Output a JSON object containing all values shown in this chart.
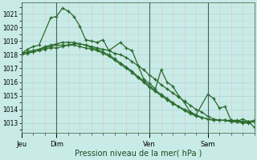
{
  "background_color": "#c8ebe8",
  "grid_color": "#b0d8d4",
  "minor_grid_color": "#e0c8c8",
  "line_color": "#2a6b2a",
  "marker_color": "#2a6b2a",
  "ylabel_ticks": [
    1013,
    1014,
    1015,
    1016,
    1017,
    1018,
    1019,
    1020,
    1021
  ],
  "ylim": [
    1012.3,
    1021.8
  ],
  "xlabel": "Pression niveau de la mer( hPa )",
  "day_labels": [
    "Jeu",
    "Dim",
    "Ven",
    "Sam"
  ],
  "day_positions": [
    0,
    6,
    22,
    32
  ],
  "xlim_max": 40,
  "series1_x": [
    0,
    1,
    2,
    3,
    5,
    6,
    7,
    8,
    9,
    10,
    11,
    12,
    13,
    14,
    15,
    17,
    18,
    19,
    21,
    22,
    23,
    24,
    25,
    26,
    27,
    28,
    29,
    30,
    32,
    33,
    34,
    35,
    36,
    37,
    38,
    39,
    40
  ],
  "series1_y": [
    1018.1,
    1018.4,
    1018.6,
    1018.7,
    1020.7,
    1020.8,
    1021.4,
    1021.2,
    1020.8,
    1020.1,
    1019.1,
    1019.0,
    1018.9,
    1019.1,
    1018.3,
    1018.9,
    1018.5,
    1018.3,
    1016.2,
    1015.9,
    1015.5,
    1016.9,
    1016.0,
    1015.7,
    1015.0,
    1014.5,
    1013.8,
    1013.6,
    1015.1,
    1014.8,
    1014.1,
    1014.2,
    1013.2,
    1013.1,
    1013.3,
    1013.1,
    1012.7
  ],
  "series2_x": [
    0,
    1,
    2,
    3,
    4,
    5,
    6,
    7,
    8,
    9,
    10,
    11,
    12,
    13,
    14,
    15,
    16,
    17,
    18,
    19,
    20,
    21,
    22,
    23,
    24,
    25,
    26,
    27,
    28,
    29,
    30,
    31,
    32,
    33,
    34,
    35,
    36,
    37,
    38,
    39,
    40
  ],
  "series2_y": [
    1018.0,
    1018.1,
    1018.2,
    1018.3,
    1018.4,
    1018.5,
    1018.5,
    1018.6,
    1018.7,
    1018.8,
    1018.8,
    1018.7,
    1018.6,
    1018.5,
    1018.4,
    1018.3,
    1018.1,
    1018.0,
    1017.8,
    1017.5,
    1017.2,
    1016.9,
    1016.5,
    1016.2,
    1015.8,
    1015.5,
    1015.2,
    1014.9,
    1014.6,
    1014.3,
    1014.0,
    1013.8,
    1013.5,
    1013.3,
    1013.2,
    1013.2,
    1013.1,
    1013.1,
    1013.0,
    1013.0,
    1013.1
  ],
  "series3_x": [
    0,
    1,
    2,
    3,
    4,
    5,
    6,
    7,
    8,
    9,
    10,
    11,
    12,
    13,
    14,
    15,
    16,
    17,
    18,
    19,
    20,
    21,
    22,
    23,
    24,
    25,
    26,
    27,
    28,
    29,
    30,
    31,
    32,
    33,
    34,
    35,
    36,
    37,
    38,
    39,
    40
  ],
  "series3_y": [
    1018.1,
    1018.2,
    1018.3,
    1018.4,
    1018.5,
    1018.6,
    1018.7,
    1018.7,
    1018.7,
    1018.7,
    1018.6,
    1018.5,
    1018.4,
    1018.3,
    1018.1,
    1017.9,
    1017.6,
    1017.3,
    1017.0,
    1016.7,
    1016.3,
    1016.0,
    1015.6,
    1015.3,
    1015.0,
    1014.7,
    1014.4,
    1014.2,
    1013.9,
    1013.7,
    1013.5,
    1013.4,
    1013.3,
    1013.2,
    1013.2,
    1013.2,
    1013.2,
    1013.2,
    1013.1,
    1013.1,
    1013.2
  ],
  "series4_x": [
    0,
    1,
    2,
    3,
    4,
    5,
    6,
    7,
    8,
    9,
    10,
    11,
    12,
    13,
    14,
    15,
    16,
    17,
    18,
    19,
    20,
    21,
    22,
    23,
    24,
    25,
    26,
    27,
    28,
    29,
    30,
    31,
    32,
    33,
    34,
    35,
    36,
    37,
    38,
    39,
    40
  ],
  "series4_y": [
    1018.1,
    1018.2,
    1018.3,
    1018.4,
    1018.6,
    1018.7,
    1018.8,
    1018.9,
    1018.9,
    1018.9,
    1018.8,
    1018.7,
    1018.5,
    1018.4,
    1018.2,
    1018.0,
    1017.7,
    1017.4,
    1017.1,
    1016.8,
    1016.4,
    1016.1,
    1015.7,
    1015.4,
    1015.1,
    1014.8,
    1014.5,
    1014.2,
    1014.0,
    1013.8,
    1013.6,
    1013.4,
    1013.3,
    1013.2,
    1013.2,
    1013.2,
    1013.1,
    1013.1,
    1013.1,
    1013.1,
    1013.1
  ]
}
